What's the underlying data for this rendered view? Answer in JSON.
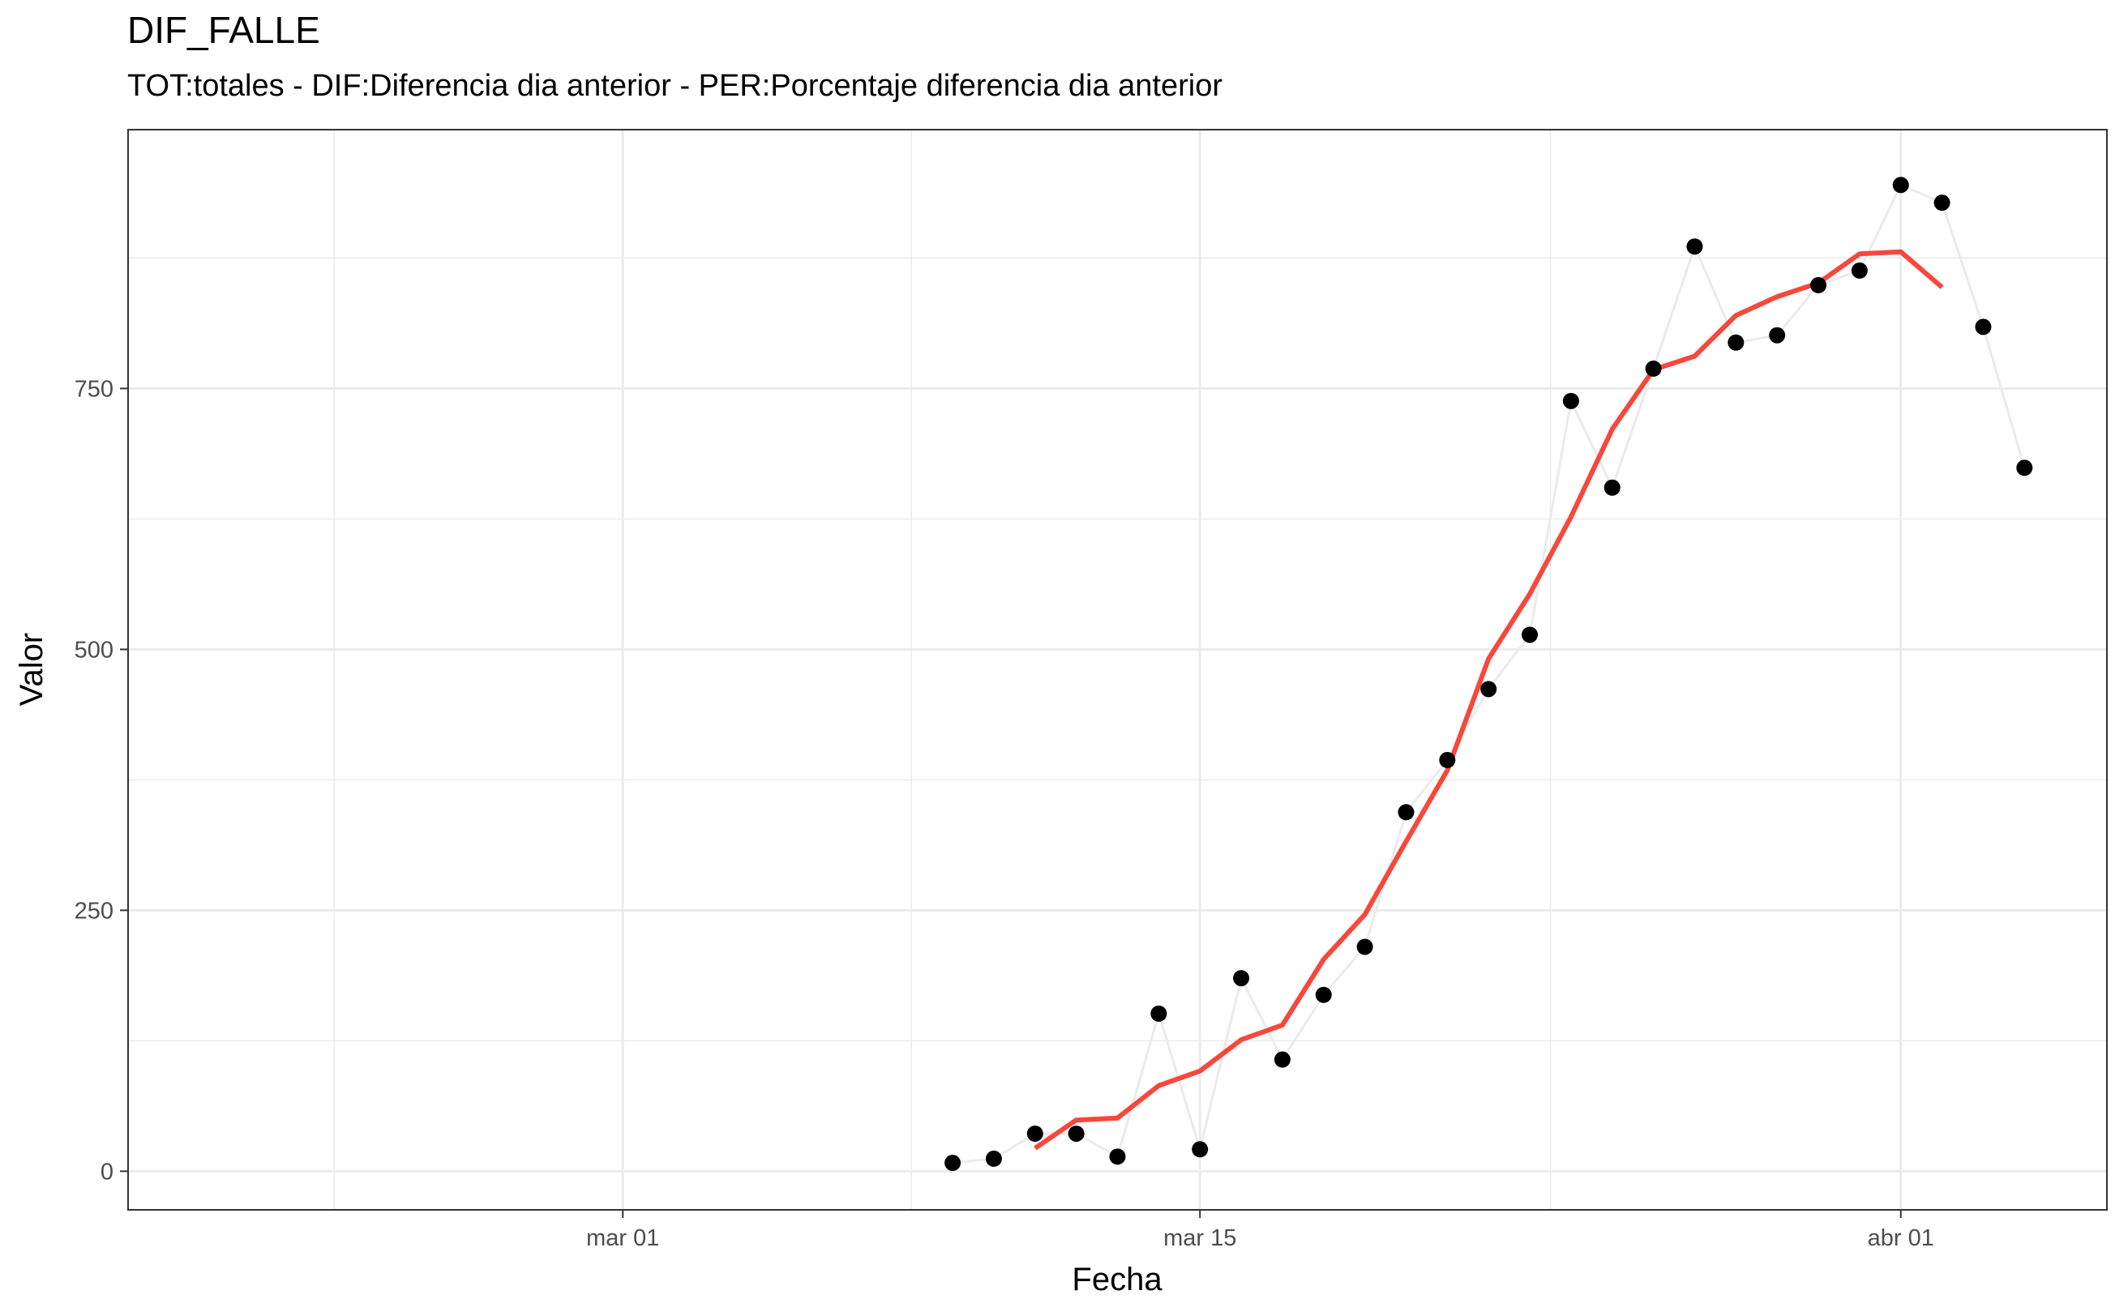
{
  "chart_data": {
    "type": "line",
    "title": "DIF_FALLE",
    "subtitle": "TOT:totales - DIF:Diferencia dia anterior - PER:Porcentaje diferencia dia anterior",
    "xlabel": "Fecha",
    "ylabel": "Valor",
    "x_ticks": [
      {
        "date": "2020-03-01",
        "label": "mar 01"
      },
      {
        "date": "2020-03-15",
        "label": "mar 15"
      },
      {
        "date": "2020-04-01",
        "label": "abr 01"
      }
    ],
    "y_ticks": [
      0,
      250,
      500,
      750
    ],
    "xlim": [
      "2020-02-18",
      "2020-04-06"
    ],
    "ylim": [
      -37,
      998
    ],
    "grid": true,
    "series": [
      {
        "kind": "points",
        "color": "#000000",
        "line_color": "#ebebeb",
        "x": [
          "2020-03-09",
          "2020-03-10",
          "2020-03-11",
          "2020-03-12",
          "2020-03-13",
          "2020-03-14",
          "2020-03-15",
          "2020-03-16",
          "2020-03-17",
          "2020-03-18",
          "2020-03-19",
          "2020-03-20",
          "2020-03-21",
          "2020-03-22",
          "2020-03-23",
          "2020-03-24",
          "2020-03-25",
          "2020-03-26",
          "2020-03-27",
          "2020-03-28",
          "2020-03-29",
          "2020-03-30",
          "2020-03-31",
          "2020-04-01",
          "2020-04-02",
          "2020-04-03",
          "2020-04-04"
        ],
        "values": [
          8,
          12,
          36,
          36,
          14,
          151,
          21,
          185,
          107,
          169,
          215,
          344,
          394,
          462,
          514,
          738,
          655,
          769,
          886,
          794,
          801,
          849,
          863,
          945,
          928,
          809,
          674
        ]
      },
      {
        "kind": "line",
        "color": "#f8473c",
        "x": [
          "2020-03-11",
          "2020-03-12",
          "2020-03-13",
          "2020-03-14",
          "2020-03-15",
          "2020-03-16",
          "2020-03-17",
          "2020-03-18",
          "2020-03-19",
          "2020-03-20",
          "2020-03-21",
          "2020-03-22",
          "2020-03-23",
          "2020-03-24",
          "2020-03-25",
          "2020-03-26",
          "2020-03-27",
          "2020-03-28",
          "2020-03-29",
          "2020-03-30",
          "2020-03-31",
          "2020-04-01",
          "2020-04-02"
        ],
        "values": [
          22,
          49,
          51,
          82,
          96,
          126,
          140,
          203,
          246,
          316,
          384,
          491,
          553,
          627,
          711,
          768,
          781,
          820,
          838,
          851,
          879,
          881,
          847
        ]
      }
    ]
  }
}
